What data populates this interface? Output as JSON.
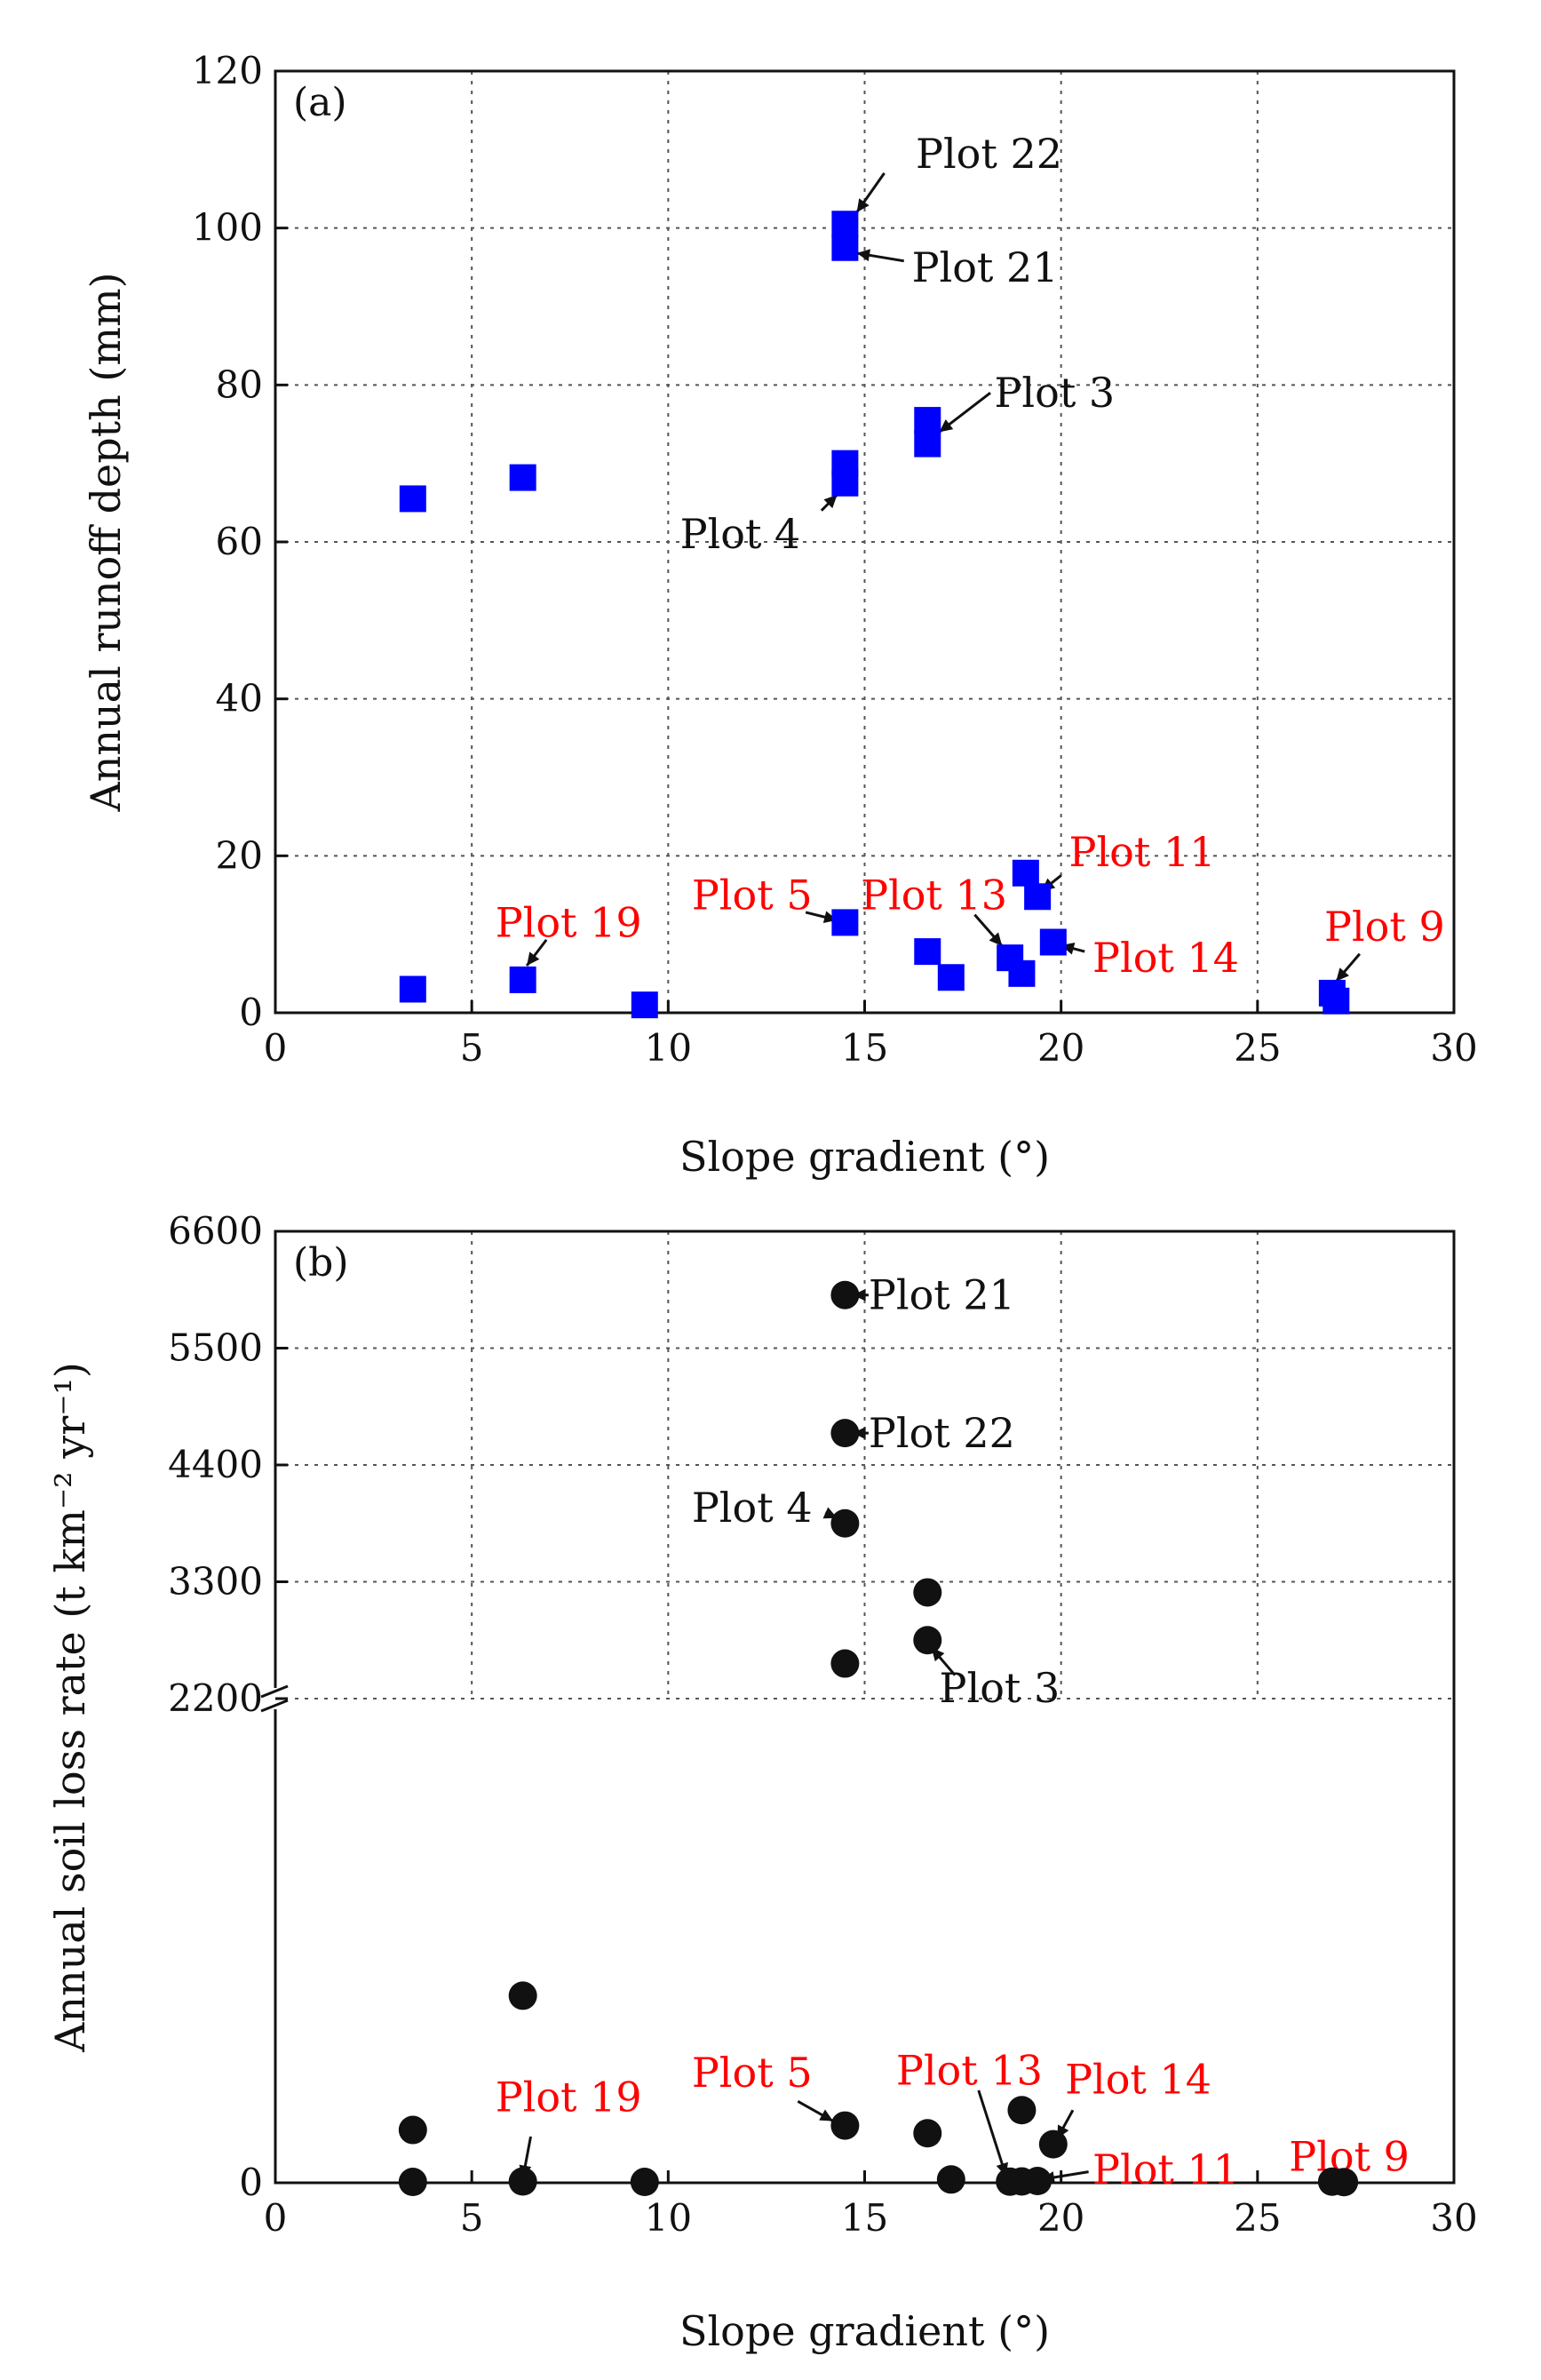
{
  "chart_data": [
    {
      "type": "scatter",
      "panel_label": "(a)",
      "xlabel": "Slope gradient (°)",
      "ylabel": "Annual runoff depth (mm)",
      "xlim": [
        0,
        30
      ],
      "ylim": [
        0,
        120
      ],
      "xticks": [
        "0",
        "5",
        "10",
        "15",
        "20",
        "25",
        "30"
      ],
      "yticks": [
        "0",
        "20",
        "40",
        "60",
        "80",
        "100",
        "120"
      ],
      "grid": true,
      "marker": "square",
      "marker_color": "#0000ff",
      "points": [
        {
          "x": 3.5,
          "y": 65.5
        },
        {
          "x": 6.3,
          "y": 68.2
        },
        {
          "x": 14.5,
          "y": 97.5
        },
        {
          "x": 14.5,
          "y": 100.5
        },
        {
          "x": 16.6,
          "y": 72.5
        },
        {
          "x": 16.6,
          "y": 75.5
        },
        {
          "x": 14.5,
          "y": 67.5
        },
        {
          "x": 14.5,
          "y": 70.0
        },
        {
          "x": 3.5,
          "y": 3.0
        },
        {
          "x": 6.3,
          "y": 4.2
        },
        {
          "x": 9.4,
          "y": 1.0
        },
        {
          "x": 14.5,
          "y": 11.5
        },
        {
          "x": 16.6,
          "y": 7.8
        },
        {
          "x": 17.2,
          "y": 4.5
        },
        {
          "x": 18.7,
          "y": 7.0
        },
        {
          "x": 19.0,
          "y": 5.0
        },
        {
          "x": 19.1,
          "y": 17.8
        },
        {
          "x": 19.4,
          "y": 14.8
        },
        {
          "x": 19.8,
          "y": 9.0
        },
        {
          "x": 26.9,
          "y": 2.5
        },
        {
          "x": 27.0,
          "y": 1.5
        }
      ],
      "annotations": [
        {
          "text": "Plot 22",
          "color": "#111111",
          "x": 16.3,
          "y": 109.5,
          "ax": 15.5,
          "ay": 107.0,
          "tx": 14.8,
          "ty": 102.0
        },
        {
          "text": "Plot 21",
          "color": "#111111",
          "x": 16.2,
          "y": 95.0,
          "ax": 16.0,
          "ay": 95.8,
          "tx": 14.8,
          "ty": 96.8
        },
        {
          "text": "Plot 3",
          "color": "#111111",
          "x": 18.3,
          "y": 79.0,
          "ax": 18.2,
          "ay": 79.0,
          "tx": 16.9,
          "ty": 74.0
        },
        {
          "text": "Plot 4",
          "color": "#111111",
          "x": 10.3,
          "y": 61.0,
          "ax": 13.9,
          "ay": 64.0,
          "tx": 14.3,
          "ty": 66.0
        },
        {
          "text": "Plot 19",
          "color": "#ff0000",
          "x": 5.6,
          "y": 11.5,
          "ax": 6.9,
          "ay": 9.3,
          "tx": 6.4,
          "ty": 6.0
        },
        {
          "text": "Plot 5",
          "color": "#ff0000",
          "x": 10.6,
          "y": 15.0,
          "ax": 13.5,
          "ay": 12.8,
          "tx": 14.3,
          "ty": 11.8
        },
        {
          "text": "Plot 13",
          "color": "#ff0000",
          "x": 14.9,
          "y": 15.0,
          "ax": 17.8,
          "ay": 12.5,
          "tx": 18.5,
          "ty": 8.5
        },
        {
          "text": "Plot 11",
          "color": "#ff0000",
          "x": 20.2,
          "y": 20.5,
          "ax": 20.0,
          "ay": 17.5,
          "tx": 19.5,
          "ty": 15.5
        },
        {
          "text": "Plot 14",
          "color": "#ff0000",
          "x": 20.8,
          "y": 7.0,
          "ax": 20.6,
          "ay": 7.8,
          "tx": 20.0,
          "ty": 8.6
        },
        {
          "text": "Plot 9",
          "color": "#ff0000",
          "x": 26.7,
          "y": 11.0,
          "ax": 27.6,
          "ay": 7.5,
          "tx": 27.0,
          "ty": 4.0
        }
      ]
    },
    {
      "type": "scatter",
      "panel_label": "(b)",
      "xlabel": "Slope gradient (°)",
      "ylabel": "Annual soil loss rate (t km⁻² yr⁻¹)",
      "xlim": [
        0,
        30
      ],
      "xticks": [
        "0",
        "5",
        "10",
        "15",
        "20",
        "25",
        "30"
      ],
      "yticks": [
        "0",
        "2200",
        "3300",
        "4400",
        "5500",
        "6600"
      ],
      "ylim_upper": [
        2200,
        6600
      ],
      "ylim_lower": [
        0,
        2200
      ],
      "broken_axis": true,
      "grid": true,
      "marker": "circle",
      "marker_color": "#111111",
      "points": [
        {
          "x": 14.5,
          "y": 6000
        },
        {
          "x": 14.5,
          "y": 4700
        },
        {
          "x": 14.5,
          "y": 3850
        },
        {
          "x": 14.5,
          "y": 2530
        },
        {
          "x": 16.6,
          "y": 3200
        },
        {
          "x": 16.6,
          "y": 2750
        },
        {
          "x": 3.5,
          "y": 240
        },
        {
          "x": 3.5,
          "y": 4
        },
        {
          "x": 6.3,
          "y": 850
        },
        {
          "x": 6.3,
          "y": 6
        },
        {
          "x": 9.4,
          "y": 4
        },
        {
          "x": 14.5,
          "y": 260
        },
        {
          "x": 16.6,
          "y": 225
        },
        {
          "x": 17.2,
          "y": 15
        },
        {
          "x": 18.7,
          "y": 5
        },
        {
          "x": 19.0,
          "y": 6
        },
        {
          "x": 19.0,
          "y": 330
        },
        {
          "x": 19.4,
          "y": 8
        },
        {
          "x": 19.8,
          "y": 175
        },
        {
          "x": 26.9,
          "y": 5
        },
        {
          "x": 27.2,
          "y": 3
        }
      ],
      "annotations": [
        {
          "text": "Plot 21",
          "color": "#111111",
          "x": 15.1,
          "y": 6000,
          "ax": 15.1,
          "ay": 6000,
          "tx": 14.7,
          "ty": 6000
        },
        {
          "text": "Plot 22",
          "color": "#111111",
          "x": 15.1,
          "y": 4700,
          "ax": 15.1,
          "ay": 4700,
          "tx": 14.7,
          "ty": 4700
        },
        {
          "text": "Plot 4",
          "color": "#111111",
          "x": 10.6,
          "y": 4000,
          "ax": 14.0,
          "ay": 3950,
          "tx": 14.3,
          "ty": 3900
        },
        {
          "text": "Plot 3",
          "color": "#111111",
          "x": 16.9,
          "y": 2300,
          "ax": 17.3,
          "ay": 2420,
          "tx": 16.7,
          "ty": 2680
        },
        {
          "text": "Plot 19",
          "color": "#ff0000",
          "x": 5.6,
          "y": 390,
          "ax": 6.5,
          "ay": 210,
          "tx": 6.3,
          "ty": 20
        },
        {
          "text": "Plot 5",
          "color": "#ff0000",
          "x": 10.6,
          "y": 500,
          "ax": 13.3,
          "ay": 370,
          "tx": 14.2,
          "ty": 280
        },
        {
          "text": "Plot 13",
          "color": "#ff0000",
          "x": 15.8,
          "y": 510,
          "ax": 17.9,
          "ay": 420,
          "tx": 18.6,
          "ty": 30
        },
        {
          "text": "Plot 14",
          "color": "#ff0000",
          "x": 20.1,
          "y": 470,
          "ax": 20.3,
          "ay": 330,
          "tx": 19.9,
          "ty": 200
        },
        {
          "text": "Plot 11",
          "color": "#ff0000",
          "x": 20.8,
          "y": 60,
          "ax": 20.7,
          "ay": 50,
          "tx": 19.5,
          "ty": 15
        },
        {
          "text": "Plot 9",
          "color": "#ff0000",
          "x": 25.8,
          "y": 120,
          "ax": 25.8,
          "ay": 120,
          "tx": 25.8,
          "ty": 120
        }
      ]
    }
  ]
}
